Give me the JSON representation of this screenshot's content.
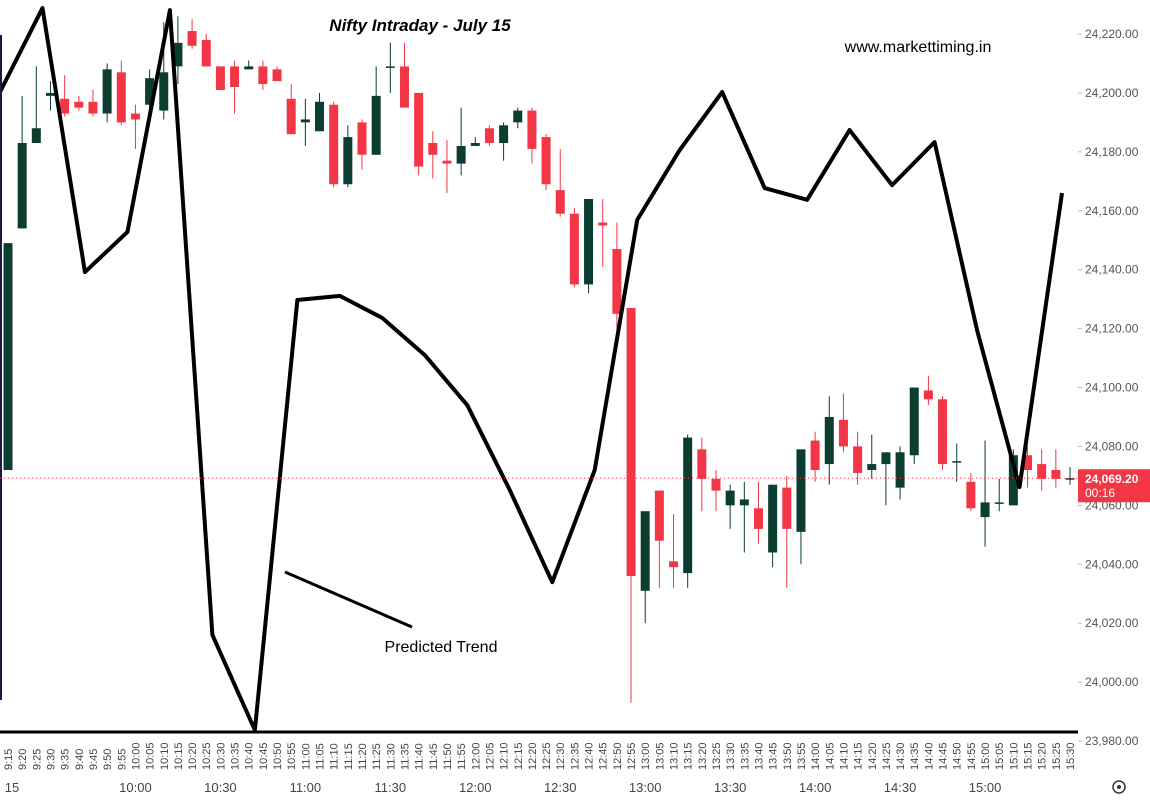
{
  "chart_data": {
    "type": "candlestick",
    "title": "Nifty Intraday - July 15",
    "watermark": "www.markettiming.in",
    "annotation": "Predicted Trend",
    "categories": [
      "9:15",
      "9:20",
      "9:25",
      "9:30",
      "9:35",
      "9:40",
      "9:45",
      "9:50",
      "9:55",
      "10:00",
      "10:05",
      "10:10",
      "10:15",
      "10:20",
      "10:25",
      "10:30",
      "10:35",
      "10:40",
      "10:45",
      "10:50",
      "10:55",
      "11:00",
      "11:05",
      "11:10",
      "11:15",
      "11:20",
      "11:25",
      "11:30",
      "11:35",
      "11:40",
      "11:45",
      "11:50",
      "11:55",
      "12:00",
      "12:05",
      "12:10",
      "12:15",
      "12:20",
      "12:25",
      "12:30",
      "12:35",
      "12:40",
      "12:45",
      "12:50",
      "12:55",
      "13:00",
      "13:05",
      "13:10",
      "13:15",
      "13:20",
      "13:25",
      "13:30",
      "13:35",
      "13:40",
      "13:45",
      "13:50",
      "13:55",
      "14:00",
      "14:05",
      "14:10",
      "14:15",
      "14:20",
      "14:25",
      "14:30",
      "14:35",
      "14:40",
      "14:45",
      "14:50",
      "14:55",
      "15:00",
      "15:05",
      "15:10",
      "15:15",
      "15:20",
      "15:25",
      "15:30"
    ],
    "major_labels": [
      "15",
      "10:00",
      "10:30",
      "11:00",
      "11:30",
      "12:00",
      "12:30",
      "13:00",
      "13:30",
      "14:00",
      "14:30",
      "15:00"
    ],
    "open": [
      24072,
      24154,
      24183,
      24199,
      24198,
      24197,
      24197,
      24193,
      24207,
      24193,
      24196,
      24194,
      24209,
      24221,
      24218,
      24209,
      24209,
      24208,
      24209,
      24208,
      24198,
      24190,
      24187,
      24196,
      24169,
      24190,
      24179,
      24209,
      24209,
      24200,
      24183,
      24177,
      24176,
      24182,
      24188,
      24183,
      24190,
      24194,
      24185,
      24167,
      24159,
      24135,
      24156,
      24147,
      24127,
      24031,
      24065,
      24041,
      24037,
      24079,
      24069,
      24060,
      24060,
      24059,
      24044,
      24066,
      24051,
      24082,
      24074,
      24089,
      24080,
      24072,
      24074,
      24066,
      24077,
      24099,
      24096,
      24075,
      24068,
      24056,
      24061,
      24060,
      24077,
      24074,
      24072,
      24069
    ],
    "high": [
      24149,
      24199,
      24209,
      24204,
      24206,
      24199,
      24201,
      24210,
      24211,
      24196,
      24208,
      24224,
      24226,
      24225,
      24220,
      24209,
      24211,
      24211,
      24211,
      24209,
      24203,
      24198,
      24200,
      24197,
      24189,
      24191,
      24209,
      24217,
      24217,
      24200,
      24187,
      24184,
      24195,
      24185,
      24189,
      24190,
      24195,
      24195,
      24186,
      24181,
      24161,
      24164,
      24164,
      24156,
      24127,
      24058,
      24065,
      24057,
      24084,
      24083,
      24072,
      24067,
      24068,
      24068,
      24067,
      24070,
      24079,
      24085,
      24097,
      24098,
      24085,
      24084,
      24078,
      24080,
      24100,
      24104,
      24097,
      24081,
      24071,
      24082,
      24069,
      24079,
      24080,
      24079,
      24079,
      24073
    ],
    "low": [
      24072,
      24154,
      24183,
      24194,
      24192,
      24194,
      24192,
      24190,
      24189,
      24181,
      24194,
      24191,
      24203,
      24215,
      24209,
      24201,
      24193,
      24208,
      24201,
      24204,
      24186,
      24182,
      24187,
      24168,
      24168,
      24174,
      24179,
      24200,
      24195,
      24172,
      24171,
      24166,
      24172,
      24182,
      24182,
      24177,
      24188,
      24176,
      24167,
      24158,
      24134,
      24132,
      24141,
      24120,
      23993,
      24020,
      24032,
      24032,
      24032,
      24058,
      24058,
      24052,
      24044,
      24047,
      24039,
      24032,
      24040,
      24068,
      24067,
      24078,
      24067,
      24069,
      24060,
      24062,
      24074,
      24094,
      24072,
      24068,
      24058,
      24046,
      24058,
      24060,
      24066,
      24065,
      24066,
      24067
    ],
    "close": [
      24149,
      24183,
      24188,
      24200,
      24193,
      24195,
      24193,
      24208,
      24190,
      24191,
      24205,
      24207,
      24217,
      24216,
      24209,
      24201,
      24202,
      24209,
      24203,
      24204,
      24186,
      24191,
      24197,
      24169,
      24185,
      24179,
      24199,
      24209,
      24195,
      24175,
      24179,
      24176,
      24182,
      24183,
      24183,
      24189,
      24194,
      24181,
      24169,
      24159,
      24135,
      24164,
      24155,
      24125,
      24036,
      24058,
      24048,
      24039,
      24083,
      24069,
      24065,
      24065,
      24062,
      24052,
      24067,
      24052,
      24079,
      24072,
      24090,
      24080,
      24071,
      24074,
      24078,
      24078,
      24100,
      24096,
      24074,
      24075,
      24059,
      24061,
      24061,
      24077,
      24072,
      24069,
      24069,
      24069.2
    ],
    "up_color": "#0b3d31",
    "down_color": "#f23645",
    "trend": {
      "color": "#000000",
      "x": [
        "9:15",
        "9:30",
        "9:45",
        "10:00",
        "10:15",
        "10:30",
        "10:45",
        "11:00",
        "11:15",
        "11:30",
        "11:45",
        "12:00",
        "12:15",
        "12:30",
        "12:45",
        "13:00",
        "13:15",
        "13:30",
        "13:45",
        "14:00",
        "14:15",
        "14:30",
        "14:45",
        "15:00",
        "15:15",
        "15:30"
      ],
      "values": [
        24200.3,
        24228.8,
        24139.2,
        24152.8,
        24228.1,
        24016,
        23983.7,
        24129.7,
        24131.1,
        24123.6,
        24111,
        24094,
        24065.2,
        24033.9,
        24072,
        24156.9,
        24180.6,
        24200.3,
        24167.7,
        24163.7,
        24187.4,
        24168.7,
        24183.3,
        24119.5,
        24066.2,
        24166
      ]
    },
    "last_price": {
      "value": 24069.2,
      "label": "24,069.20",
      "countdown": "00:16"
    },
    "ylim": [
      23980,
      24220
    ],
    "yticks": [
      {
        "value": 23980,
        "label": "23,980.00"
      },
      {
        "value": 24000,
        "label": "24,000.00"
      },
      {
        "value": 24020,
        "label": "24,020.00"
      },
      {
        "value": 24040,
        "label": "24,040.00"
      },
      {
        "value": 24060,
        "label": "24,060.00"
      },
      {
        "value": 24080,
        "label": "24,080.00"
      },
      {
        "value": 24100,
        "label": "24,100.00"
      },
      {
        "value": 24120,
        "label": "24,120.00"
      },
      {
        "value": 24140,
        "label": "24,140.00"
      },
      {
        "value": 24160,
        "label": "24,160.00"
      },
      {
        "value": 24180,
        "label": "24,180.00"
      },
      {
        "value": 24200,
        "label": "24,200.00"
      },
      {
        "value": 24220,
        "label": "24,220.00"
      }
    ]
  }
}
